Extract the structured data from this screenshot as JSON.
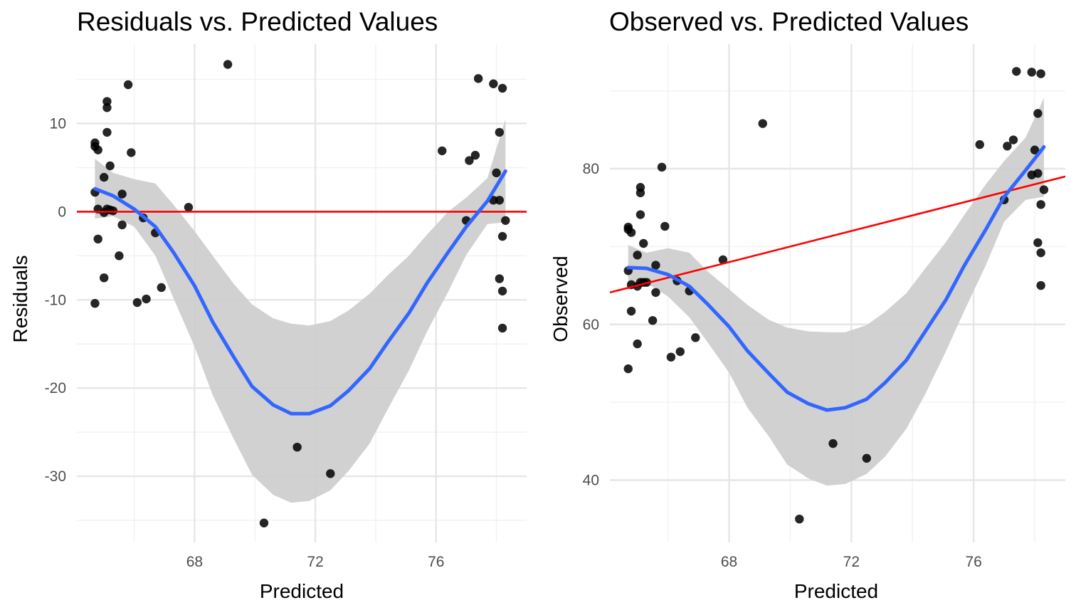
{
  "chart_data": [
    {
      "type": "scatter",
      "title": "Residuals vs. Predicted Values",
      "xlabel": "Predicted",
      "ylabel": "Residuals",
      "xlim": [
        64.1,
        79.0
      ],
      "ylim": [
        -37.5,
        19.0
      ],
      "x_ticks": [
        68,
        72,
        76
      ],
      "x_tick_labels": [
        "68",
        "72",
        "76"
      ],
      "y_ticks": [
        -30,
        -20,
        -10,
        0,
        10
      ],
      "y_tick_labels": [
        "-30",
        "-20",
        "-10",
        "0",
        "10"
      ],
      "grid": true,
      "reference_line": {
        "type": "horizontal",
        "y": 0,
        "color": "#ff0000"
      },
      "smooth_color": "#3366ff",
      "ribbon_color": "#cccccc",
      "point_color": "#000000",
      "points": [
        {
          "x": 64.7,
          "y": 7.8
        },
        {
          "x": 64.7,
          "y": 7.4
        },
        {
          "x": 64.8,
          "y": 7.0
        },
        {
          "x": 64.7,
          "y": 2.2
        },
        {
          "x": 64.8,
          "y": 0.3
        },
        {
          "x": 64.8,
          "y": -3.1
        },
        {
          "x": 64.7,
          "y": -10.4
        },
        {
          "x": 65.1,
          "y": 12.5
        },
        {
          "x": 65.1,
          "y": 11.8
        },
        {
          "x": 65.1,
          "y": 9.0
        },
        {
          "x": 65.2,
          "y": 5.2
        },
        {
          "x": 65.0,
          "y": 3.9
        },
        {
          "x": 65.0,
          "y": -0.1
        },
        {
          "x": 65.1,
          "y": 0.3
        },
        {
          "x": 65.2,
          "y": 0.2
        },
        {
          "x": 65.3,
          "y": 0.1
        },
        {
          "x": 65.0,
          "y": -7.5
        },
        {
          "x": 65.5,
          "y": -5.0
        },
        {
          "x": 65.6,
          "y": 2.0
        },
        {
          "x": 65.6,
          "y": -1.5
        },
        {
          "x": 65.8,
          "y": 14.4
        },
        {
          "x": 65.9,
          "y": 6.7
        },
        {
          "x": 66.1,
          "y": -10.3
        },
        {
          "x": 66.3,
          "y": -0.7
        },
        {
          "x": 66.4,
          "y": -9.9
        },
        {
          "x": 66.7,
          "y": -2.4
        },
        {
          "x": 66.9,
          "y": -8.6
        },
        {
          "x": 67.8,
          "y": 0.5
        },
        {
          "x": 69.1,
          "y": 16.7
        },
        {
          "x": 70.3,
          "y": -35.3
        },
        {
          "x": 71.4,
          "y": -26.7
        },
        {
          "x": 72.5,
          "y": -29.7
        },
        {
          "x": 76.2,
          "y": 6.9
        },
        {
          "x": 77.0,
          "y": -1.0
        },
        {
          "x": 77.1,
          "y": 5.8
        },
        {
          "x": 77.3,
          "y": 6.4
        },
        {
          "x": 77.4,
          "y": 15.1
        },
        {
          "x": 77.9,
          "y": 14.5
        },
        {
          "x": 78.0,
          "y": 4.4
        },
        {
          "x": 77.9,
          "y": 1.3
        },
        {
          "x": 78.1,
          "y": 1.3
        },
        {
          "x": 78.1,
          "y": 9.0
        },
        {
          "x": 78.1,
          "y": -7.6
        },
        {
          "x": 78.2,
          "y": -13.2
        },
        {
          "x": 78.2,
          "y": 14.0
        },
        {
          "x": 78.3,
          "y": -1.0
        },
        {
          "x": 78.2,
          "y": -2.8
        },
        {
          "x": 78.2,
          "y": -9.0
        }
      ],
      "smooth": [
        {
          "x": 64.7,
          "y": 2.6,
          "lo": -0.8,
          "hi": 6.0
        },
        {
          "x": 65.3,
          "y": 1.8,
          "lo": -0.5,
          "hi": 4.4
        },
        {
          "x": 66.0,
          "y": 0.3,
          "lo": -1.7,
          "hi": 3.7
        },
        {
          "x": 66.7,
          "y": -1.7,
          "lo": -5.0,
          "hi": 3.2
        },
        {
          "x": 67.3,
          "y": -4.6,
          "lo": -9.8,
          "hi": 0.8
        },
        {
          "x": 68.0,
          "y": -8.4,
          "lo": -15.3,
          "hi": -2.2
        },
        {
          "x": 68.6,
          "y": -12.5,
          "lo": -20.8,
          "hi": -5.0
        },
        {
          "x": 69.3,
          "y": -16.5,
          "lo": -25.8,
          "hi": -8.2
        },
        {
          "x": 69.9,
          "y": -19.8,
          "lo": -29.8,
          "hi": -10.5
        },
        {
          "x": 70.6,
          "y": -21.9,
          "lo": -32.1,
          "hi": -12.1
        },
        {
          "x": 71.2,
          "y": -22.9,
          "lo": -33.0,
          "hi": -12.7
        },
        {
          "x": 71.8,
          "y": -22.9,
          "lo": -32.8,
          "hi": -12.9
        },
        {
          "x": 72.5,
          "y": -22.0,
          "lo": -31.6,
          "hi": -12.4
        },
        {
          "x": 73.1,
          "y": -20.3,
          "lo": -29.4,
          "hi": -11.2
        },
        {
          "x": 73.8,
          "y": -17.8,
          "lo": -26.3,
          "hi": -9.3
        },
        {
          "x": 74.4,
          "y": -14.8,
          "lo": -22.4,
          "hi": -7.2
        },
        {
          "x": 75.1,
          "y": -11.5,
          "lo": -18.0,
          "hi": -5.0
        },
        {
          "x": 75.7,
          "y": -8.1,
          "lo": -13.6,
          "hi": -2.6
        },
        {
          "x": 76.4,
          "y": -4.6,
          "lo": -9.1,
          "hi": 0.0
        },
        {
          "x": 77.0,
          "y": -1.7,
          "lo": -4.9,
          "hi": 1.6
        },
        {
          "x": 77.7,
          "y": 1.2,
          "lo": -1.4,
          "hi": 3.8
        },
        {
          "x": 78.3,
          "y": 4.6,
          "lo": -1.2,
          "hi": 10.5
        }
      ]
    },
    {
      "type": "scatter",
      "title": "Observed vs. Predicted Values",
      "xlabel": "Predicted",
      "ylabel": "Observed",
      "xlim": [
        64.1,
        79.0
      ],
      "ylim": [
        32.0,
        96.0
      ],
      "x_ticks": [
        68,
        72,
        76
      ],
      "x_tick_labels": [
        "68",
        "72",
        "76"
      ],
      "y_ticks": [
        40,
        60,
        80
      ],
      "y_tick_labels": [
        "40",
        "60",
        "80"
      ],
      "grid": true,
      "reference_line": {
        "type": "identity",
        "from": [
          64.1,
          64.1
        ],
        "to": [
          79.0,
          79.0
        ],
        "color": "#ff0000"
      },
      "smooth_color": "#3366ff",
      "ribbon_color": "#cccccc",
      "point_color": "#000000",
      "points": [
        {
          "x": 64.7,
          "y": 72.5
        },
        {
          "x": 64.7,
          "y": 72.2
        },
        {
          "x": 64.8,
          "y": 71.8
        },
        {
          "x": 64.7,
          "y": 66.9
        },
        {
          "x": 64.8,
          "y": 65.1
        },
        {
          "x": 64.8,
          "y": 61.7
        },
        {
          "x": 64.7,
          "y": 54.3
        },
        {
          "x": 65.1,
          "y": 77.6
        },
        {
          "x": 65.1,
          "y": 76.9
        },
        {
          "x": 65.1,
          "y": 74.1
        },
        {
          "x": 65.2,
          "y": 70.4
        },
        {
          "x": 65.0,
          "y": 68.9
        },
        {
          "x": 65.0,
          "y": 64.9
        },
        {
          "x": 65.1,
          "y": 65.4
        },
        {
          "x": 65.2,
          "y": 65.4
        },
        {
          "x": 65.3,
          "y": 65.4
        },
        {
          "x": 65.0,
          "y": 57.5
        },
        {
          "x": 65.5,
          "y": 60.5
        },
        {
          "x": 65.6,
          "y": 67.6
        },
        {
          "x": 65.6,
          "y": 64.1
        },
        {
          "x": 65.8,
          "y": 80.2
        },
        {
          "x": 65.9,
          "y": 72.6
        },
        {
          "x": 66.1,
          "y": 55.8
        },
        {
          "x": 66.3,
          "y": 65.6
        },
        {
          "x": 66.4,
          "y": 56.5
        },
        {
          "x": 66.7,
          "y": 64.3
        },
        {
          "x": 66.9,
          "y": 58.3
        },
        {
          "x": 67.8,
          "y": 68.3
        },
        {
          "x": 69.1,
          "y": 85.8
        },
        {
          "x": 70.3,
          "y": 35.0
        },
        {
          "x": 71.4,
          "y": 44.7
        },
        {
          "x": 72.5,
          "y": 42.8
        },
        {
          "x": 76.2,
          "y": 83.1
        },
        {
          "x": 77.0,
          "y": 76.0
        },
        {
          "x": 77.1,
          "y": 82.9
        },
        {
          "x": 77.3,
          "y": 83.7
        },
        {
          "x": 77.4,
          "y": 92.5
        },
        {
          "x": 77.9,
          "y": 92.4
        },
        {
          "x": 78.0,
          "y": 82.4
        },
        {
          "x": 77.9,
          "y": 79.2
        },
        {
          "x": 78.1,
          "y": 79.4
        },
        {
          "x": 78.1,
          "y": 87.1
        },
        {
          "x": 78.1,
          "y": 70.5
        },
        {
          "x": 78.2,
          "y": 65.0
        },
        {
          "x": 78.2,
          "y": 92.2
        },
        {
          "x": 78.3,
          "y": 77.3
        },
        {
          "x": 78.2,
          "y": 75.4
        },
        {
          "x": 78.2,
          "y": 69.2
        }
      ],
      "smooth": [
        {
          "x": 64.7,
          "y": 67.3,
          "lo": 64.4,
          "hi": 70.2
        },
        {
          "x": 65.3,
          "y": 67.2,
          "lo": 65.3,
          "hi": 69.2
        },
        {
          "x": 66.0,
          "y": 66.4,
          "lo": 63.6,
          "hi": 69.8
        },
        {
          "x": 66.7,
          "y": 64.9,
          "lo": 60.9,
          "hi": 69.2
        },
        {
          "x": 67.3,
          "y": 62.6,
          "lo": 57.7,
          "hi": 66.8
        },
        {
          "x": 68.0,
          "y": 59.7,
          "lo": 53.8,
          "hi": 64.5
        },
        {
          "x": 68.6,
          "y": 56.6,
          "lo": 49.3,
          "hi": 62.5
        },
        {
          "x": 69.3,
          "y": 53.7,
          "lo": 45.6,
          "hi": 60.6
        },
        {
          "x": 69.9,
          "y": 51.3,
          "lo": 42.0,
          "hi": 59.6
        },
        {
          "x": 70.6,
          "y": 49.8,
          "lo": 40.2,
          "hi": 59.1
        },
        {
          "x": 71.2,
          "y": 49.0,
          "lo": 39.3,
          "hi": 59.0
        },
        {
          "x": 71.8,
          "y": 49.3,
          "lo": 39.5,
          "hi": 59.0
        },
        {
          "x": 72.5,
          "y": 50.4,
          "lo": 40.8,
          "hi": 59.9
        },
        {
          "x": 73.1,
          "y": 52.5,
          "lo": 43.0,
          "hi": 61.6
        },
        {
          "x": 73.8,
          "y": 55.4,
          "lo": 46.6,
          "hi": 64.0
        },
        {
          "x": 74.4,
          "y": 59.0,
          "lo": 50.9,
          "hi": 67.1
        },
        {
          "x": 75.1,
          "y": 63.2,
          "lo": 56.6,
          "hi": 70.6
        },
        {
          "x": 75.7,
          "y": 67.6,
          "lo": 61.8,
          "hi": 74.1
        },
        {
          "x": 76.4,
          "y": 72.2,
          "lo": 67.6,
          "hi": 78.0
        },
        {
          "x": 77.0,
          "y": 76.4,
          "lo": 73.2,
          "hi": 81.0
        },
        {
          "x": 77.7,
          "y": 79.8,
          "lo": 76.0,
          "hi": 84.0
        },
        {
          "x": 78.3,
          "y": 82.8,
          "lo": 76.4,
          "hi": 89.1
        }
      ]
    }
  ]
}
